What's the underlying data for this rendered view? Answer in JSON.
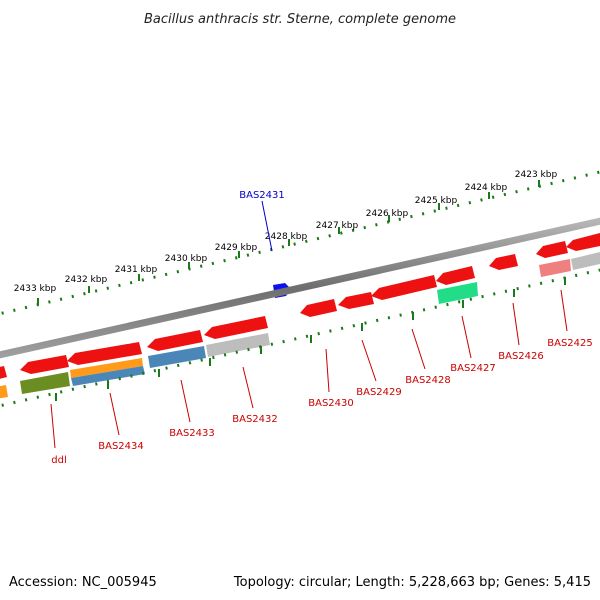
{
  "title": "Bacillus anthracis str. Sterne, complete genome",
  "footer": {
    "accession": "Accession: NC_005945",
    "summary": "Topology: circular; Length: 5,228,663 bp; Genes: 5,415"
  },
  "colors": {
    "backbone": "#7f7f7f",
    "ruler": "#1a7a1a",
    "label_fwd": "#0000cc",
    "label_rev": "#cc0000",
    "red": "#ee1111",
    "grey": "#bdbdbd",
    "pink": "#f08080",
    "steelblue": "#4a86b8",
    "orange": "#ff9a1a",
    "olive": "#6b8e23",
    "spring": "#22dd88",
    "blue": "#1010ee"
  },
  "kbp_labels": [
    "2433 kbp",
    "2432 kbp",
    "2431 kbp",
    "2430 kbp",
    "2429 kbp",
    "2428 kbp",
    "2427 kbp",
    "2426 kbp",
    "2425 kbp",
    "2424 kbp",
    "2423 kbp"
  ],
  "gene_labels": {
    "forward": [
      "BAS2431"
    ],
    "reverse": [
      "ddl",
      "BAS2434",
      "BAS2433",
      "BAS2432",
      "BAS2430",
      "BAS2429",
      "BAS2428",
      "BAS2427",
      "BAS2426",
      "BAS2425"
    ]
  }
}
